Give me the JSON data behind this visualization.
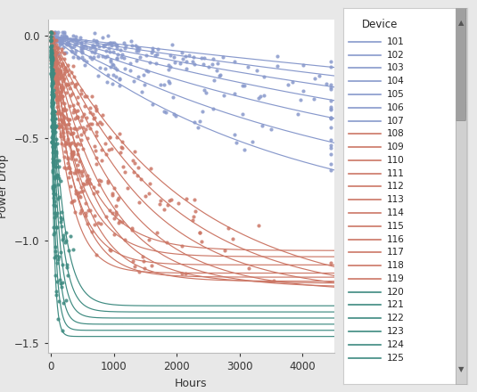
{
  "title": "",
  "xlabel": "Hours",
  "ylabel": "Power Drop",
  "xlim": [
    -50,
    4500
  ],
  "ylim": [
    -1.55,
    0.08
  ],
  "plot_bg": "#ffffff",
  "fig_bg": "#e8e8e8",
  "legend_title": "Device",
  "devices": [
    {
      "id": 101,
      "color": "#8899cc",
      "rate": 5.5e-05,
      "max_drop": -0.7
    },
    {
      "id": 102,
      "color": "#8899cc",
      "rate": 7e-05,
      "max_drop": -0.72
    },
    {
      "id": 103,
      "color": "#8899cc",
      "rate": 9e-05,
      "max_drop": -0.75
    },
    {
      "id": 104,
      "color": "#8899cc",
      "rate": 0.000115,
      "max_drop": -0.78
    },
    {
      "id": 105,
      "color": "#8899cc",
      "rate": 0.00015,
      "max_drop": -0.82
    },
    {
      "id": 106,
      "color": "#8899cc",
      "rate": 0.0002,
      "max_drop": -0.88
    },
    {
      "id": 107,
      "color": "#8899cc",
      "rate": 0.00026,
      "max_drop": -0.95
    },
    {
      "id": 108,
      "color": "#cc7766",
      "rate": 0.00045,
      "max_drop": -1.3
    },
    {
      "id": 109,
      "color": "#cc7766",
      "rate": 0.00055,
      "max_drop": -1.28
    },
    {
      "id": 110,
      "color": "#cc7766",
      "rate": 0.0007,
      "max_drop": -1.26
    },
    {
      "id": 111,
      "color": "#cc7766",
      "rate": 0.0009,
      "max_drop": -1.25
    },
    {
      "id": 112,
      "color": "#cc7766",
      "rate": 0.00115,
      "max_drop": -1.23
    },
    {
      "id": 113,
      "color": "#cc7766",
      "rate": 0.0015,
      "max_drop": -1.21
    },
    {
      "id": 114,
      "color": "#cc7766",
      "rate": 0.002,
      "max_drop": -1.2
    },
    {
      "id": 115,
      "color": "#cc7766",
      "rate": 0.0026,
      "max_drop": -1.18
    },
    {
      "id": 116,
      "color": "#cc7766",
      "rate": 0.0035,
      "max_drop": -1.16
    },
    {
      "id": 117,
      "color": "#cc7766",
      "rate": 0.0018,
      "max_drop": -1.05
    },
    {
      "id": 118,
      "color": "#cc7766",
      "rate": 0.0022,
      "max_drop": -1.08
    },
    {
      "id": 119,
      "color": "#cc7766",
      "rate": 0.0028,
      "max_drop": -1.12
    },
    {
      "id": 120,
      "color": "#3d8a80",
      "rate": 0.0055,
      "max_drop": -1.32
    },
    {
      "id": 121,
      "color": "#3d8a80",
      "rate": 0.007,
      "max_drop": -1.35
    },
    {
      "id": 122,
      "color": "#3d8a80",
      "rate": 0.009,
      "max_drop": -1.38
    },
    {
      "id": 123,
      "color": "#3d8a80",
      "rate": 0.012,
      "max_drop": -1.41
    },
    {
      "id": 124,
      "color": "#3d8a80",
      "rate": 0.016,
      "max_drop": -1.44
    },
    {
      "id": 125,
      "color": "#3d8a80",
      "rate": 0.022,
      "max_drop": -1.47
    }
  ],
  "yticks": [
    0.0,
    -0.5,
    -1.0,
    -1.5
  ],
  "xticks": [
    0,
    1000,
    2000,
    3000,
    4000
  ]
}
